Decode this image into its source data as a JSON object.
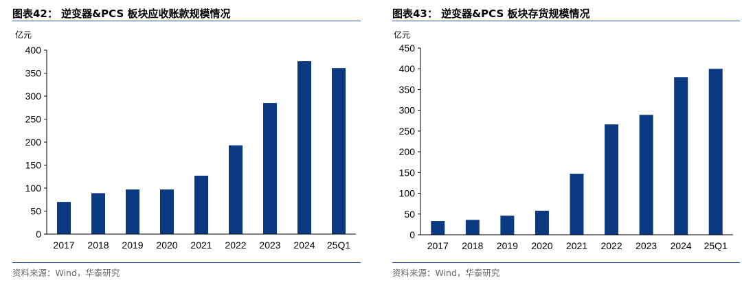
{
  "panels": [
    {
      "title": "图表42：  逆变器&PCS 板块应收账款规模情况",
      "source": "资料来源：Wind，华泰研究"
    },
    {
      "title": "图表43：  逆变器&PCS 板块存货规模情况",
      "source": "资料来源：Wind，华泰研究"
    }
  ],
  "chart_data": [
    {
      "type": "bar",
      "title": "图表42：  逆变器&PCS 板块应收账款规模情况",
      "ylabel": "亿元",
      "categories": [
        "2017",
        "2018",
        "2019",
        "2020",
        "2021",
        "2022",
        "2023",
        "2024",
        "25Q1"
      ],
      "values": [
        70,
        89,
        97,
        97,
        127,
        193,
        285,
        376,
        361
      ],
      "ylim": [
        0,
        400
      ],
      "yticks": [
        "0",
        "50",
        "100",
        "150",
        "200",
        "250",
        "300",
        "350",
        "400"
      ],
      "grid": false,
      "color": "#0c3a82"
    },
    {
      "type": "bar",
      "title": "图表43：  逆变器&PCS 板块存货规模情况",
      "ylabel": "亿元",
      "categories": [
        "2017",
        "2018",
        "2019",
        "2020",
        "2021",
        "2022",
        "2023",
        "2024",
        "25Q1"
      ],
      "values": [
        33,
        36,
        46,
        58,
        147,
        266,
        289,
        380,
        400
      ],
      "ylim": [
        0,
        450
      ],
      "yticks": [
        "0",
        "50",
        "100",
        "150",
        "200",
        "250",
        "300",
        "350",
        "400",
        "450"
      ],
      "grid": false,
      "color": "#0c3a82"
    }
  ]
}
